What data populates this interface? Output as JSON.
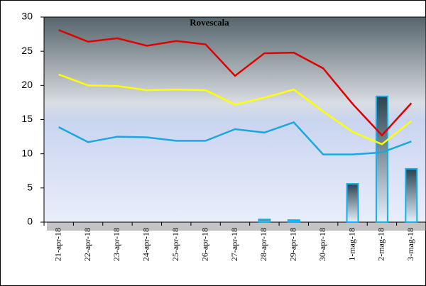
{
  "chart_data": {
    "type": "line",
    "title": "Rovescala",
    "categories": [
      "21-apr-18",
      "22-apr-18",
      "23-apr-18",
      "24-apr-18",
      "25-apr-18",
      "26-apr-18",
      "27-apr-18",
      "28-apr-18",
      "29-apr-18",
      "30-apr-18",
      "1-mag-18",
      "2-mag-18",
      "3-mag-18"
    ],
    "series": [
      {
        "type": "bar",
        "color": "#14b0f0",
        "values": [
          0,
          0,
          0,
          0,
          0,
          0,
          0,
          0.4,
          0.3,
          0,
          5.6,
          18.4,
          7.8
        ]
      },
      {
        "type": "line",
        "color": "#e00000",
        "values": [
          28.1,
          26.4,
          26.9,
          25.8,
          26.5,
          26.0,
          21.4,
          24.7,
          24.8,
          22.5,
          17.3,
          12.7,
          17.4
        ]
      },
      {
        "type": "line",
        "color": "#ffff00",
        "values": [
          21.6,
          20.0,
          19.9,
          19.3,
          19.4,
          19.3,
          17.2,
          18.2,
          19.4,
          16.2,
          13.2,
          11.4,
          14.8
        ]
      },
      {
        "type": "line",
        "color": "#1aa8e0",
        "values": [
          13.9,
          11.7,
          12.5,
          12.4,
          11.9,
          11.9,
          13.6,
          13.1,
          14.6,
          9.9,
          9.9,
          10.2,
          11.8
        ]
      }
    ],
    "ylim": [
      0,
      30
    ],
    "yticks": [
      0,
      5,
      10,
      15,
      20,
      25,
      30
    ]
  }
}
